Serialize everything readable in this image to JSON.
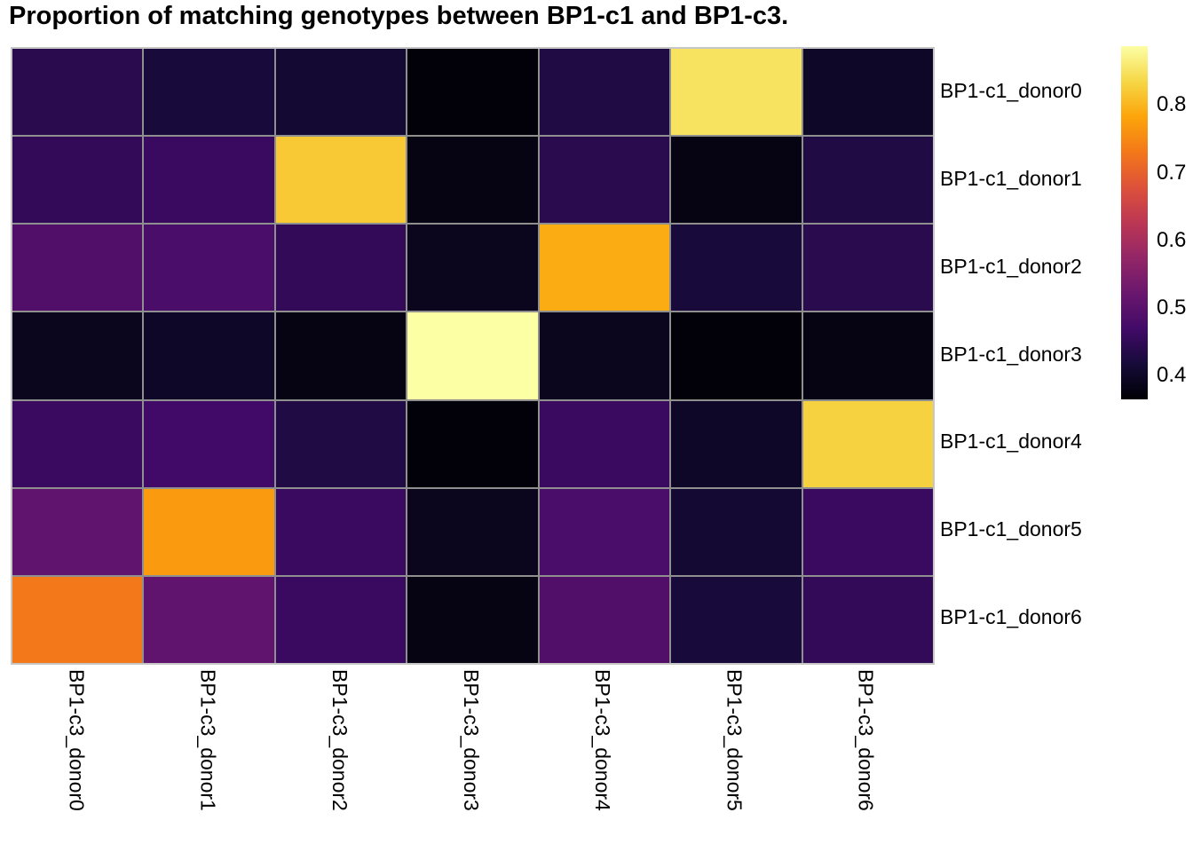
{
  "chart_data": {
    "type": "heatmap",
    "title": "Proportion of matching genotypes between BP1-c1 and BP1-c3.",
    "rows": [
      "BP1-c1_donor0",
      "BP1-c1_donor1",
      "BP1-c1_donor2",
      "BP1-c1_donor3",
      "BP1-c1_donor4",
      "BP1-c1_donor5",
      "BP1-c1_donor6"
    ],
    "columns": [
      "BP1-c3_donor0",
      "BP1-c3_donor1",
      "BP1-c3_donor2",
      "BP1-c3_donor3",
      "BP1-c3_donor4",
      "BP1-c3_donor5",
      "BP1-c3_donor6"
    ],
    "values": [
      [
        0.44,
        0.42,
        0.41,
        0.37,
        0.43,
        0.85,
        0.4
      ],
      [
        0.45,
        0.46,
        0.82,
        0.38,
        0.44,
        0.38,
        0.43
      ],
      [
        0.49,
        0.48,
        0.45,
        0.39,
        0.79,
        0.42,
        0.44
      ],
      [
        0.39,
        0.4,
        0.38,
        0.89,
        0.39,
        0.37,
        0.38
      ],
      [
        0.46,
        0.47,
        0.43,
        0.37,
        0.46,
        0.4,
        0.83
      ],
      [
        0.51,
        0.77,
        0.46,
        0.39,
        0.48,
        0.41,
        0.46
      ],
      [
        0.73,
        0.51,
        0.46,
        0.38,
        0.49,
        0.42,
        0.45
      ]
    ],
    "colormap": "inferno",
    "vmin": 0.365,
    "vmax": 0.887,
    "colorbar_ticks": [
      0.8,
      0.7,
      0.6,
      0.5,
      0.4
    ],
    "legend_position": "right",
    "grid_on": true,
    "grid_color": "#8f8f8f",
    "border_color": "#c6c6c6",
    "background_color": "#ffffff",
    "text_color": "#000000"
  }
}
